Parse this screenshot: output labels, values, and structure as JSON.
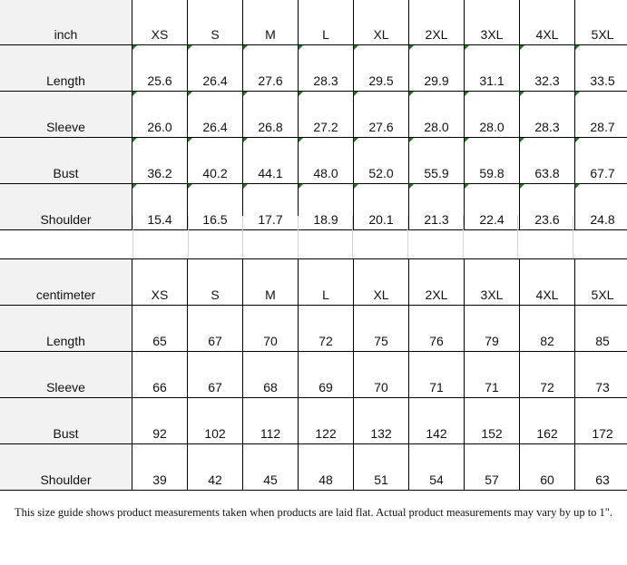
{
  "inch_table": {
    "unit": "inch",
    "sizes": [
      "XS",
      "S",
      "M",
      "L",
      "XL",
      "2XL",
      "3XL",
      "4XL",
      "5XL"
    ],
    "rows": [
      {
        "label": "Length",
        "values": [
          "25.6",
          "26.4",
          "27.6",
          "28.3",
          "29.5",
          "29.9",
          "31.1",
          "32.3",
          "33.5"
        ]
      },
      {
        "label": "Sleeve",
        "values": [
          "26.0",
          "26.4",
          "26.8",
          "27.2",
          "27.6",
          "28.0",
          "28.0",
          "28.3",
          "28.7"
        ]
      },
      {
        "label": "Bust",
        "values": [
          "36.2",
          "40.2",
          "44.1",
          "48.0",
          "52.0",
          "55.9",
          "59.8",
          "63.8",
          "67.7"
        ]
      },
      {
        "label": "Shoulder",
        "values": [
          "15.4",
          "16.5",
          "17.7",
          "18.9",
          "20.1",
          "21.3",
          "22.4",
          "23.6",
          "24.8"
        ]
      }
    ]
  },
  "cm_table": {
    "unit": "centimeter",
    "sizes": [
      "XS",
      "S",
      "M",
      "L",
      "XL",
      "2XL",
      "3XL",
      "4XL",
      "5XL"
    ],
    "rows": [
      {
        "label": "Length",
        "values": [
          "65",
          "67",
          "70",
          "72",
          "75",
          "76",
          "79",
          "82",
          "85"
        ]
      },
      {
        "label": "Sleeve",
        "values": [
          "66",
          "67",
          "68",
          "69",
          "70",
          "71",
          "71",
          "72",
          "73"
        ]
      },
      {
        "label": "Bust",
        "values": [
          "92",
          "102",
          "112",
          "122",
          "132",
          "142",
          "152",
          "162",
          "172"
        ]
      },
      {
        "label": "Shoulder",
        "values": [
          "39",
          "42",
          "45",
          "48",
          "51",
          "54",
          "57",
          "60",
          "63"
        ]
      }
    ]
  },
  "note": "This size guide shows product measurements taken when products are laid flat. Actual product measurements may vary by up to 1\"."
}
